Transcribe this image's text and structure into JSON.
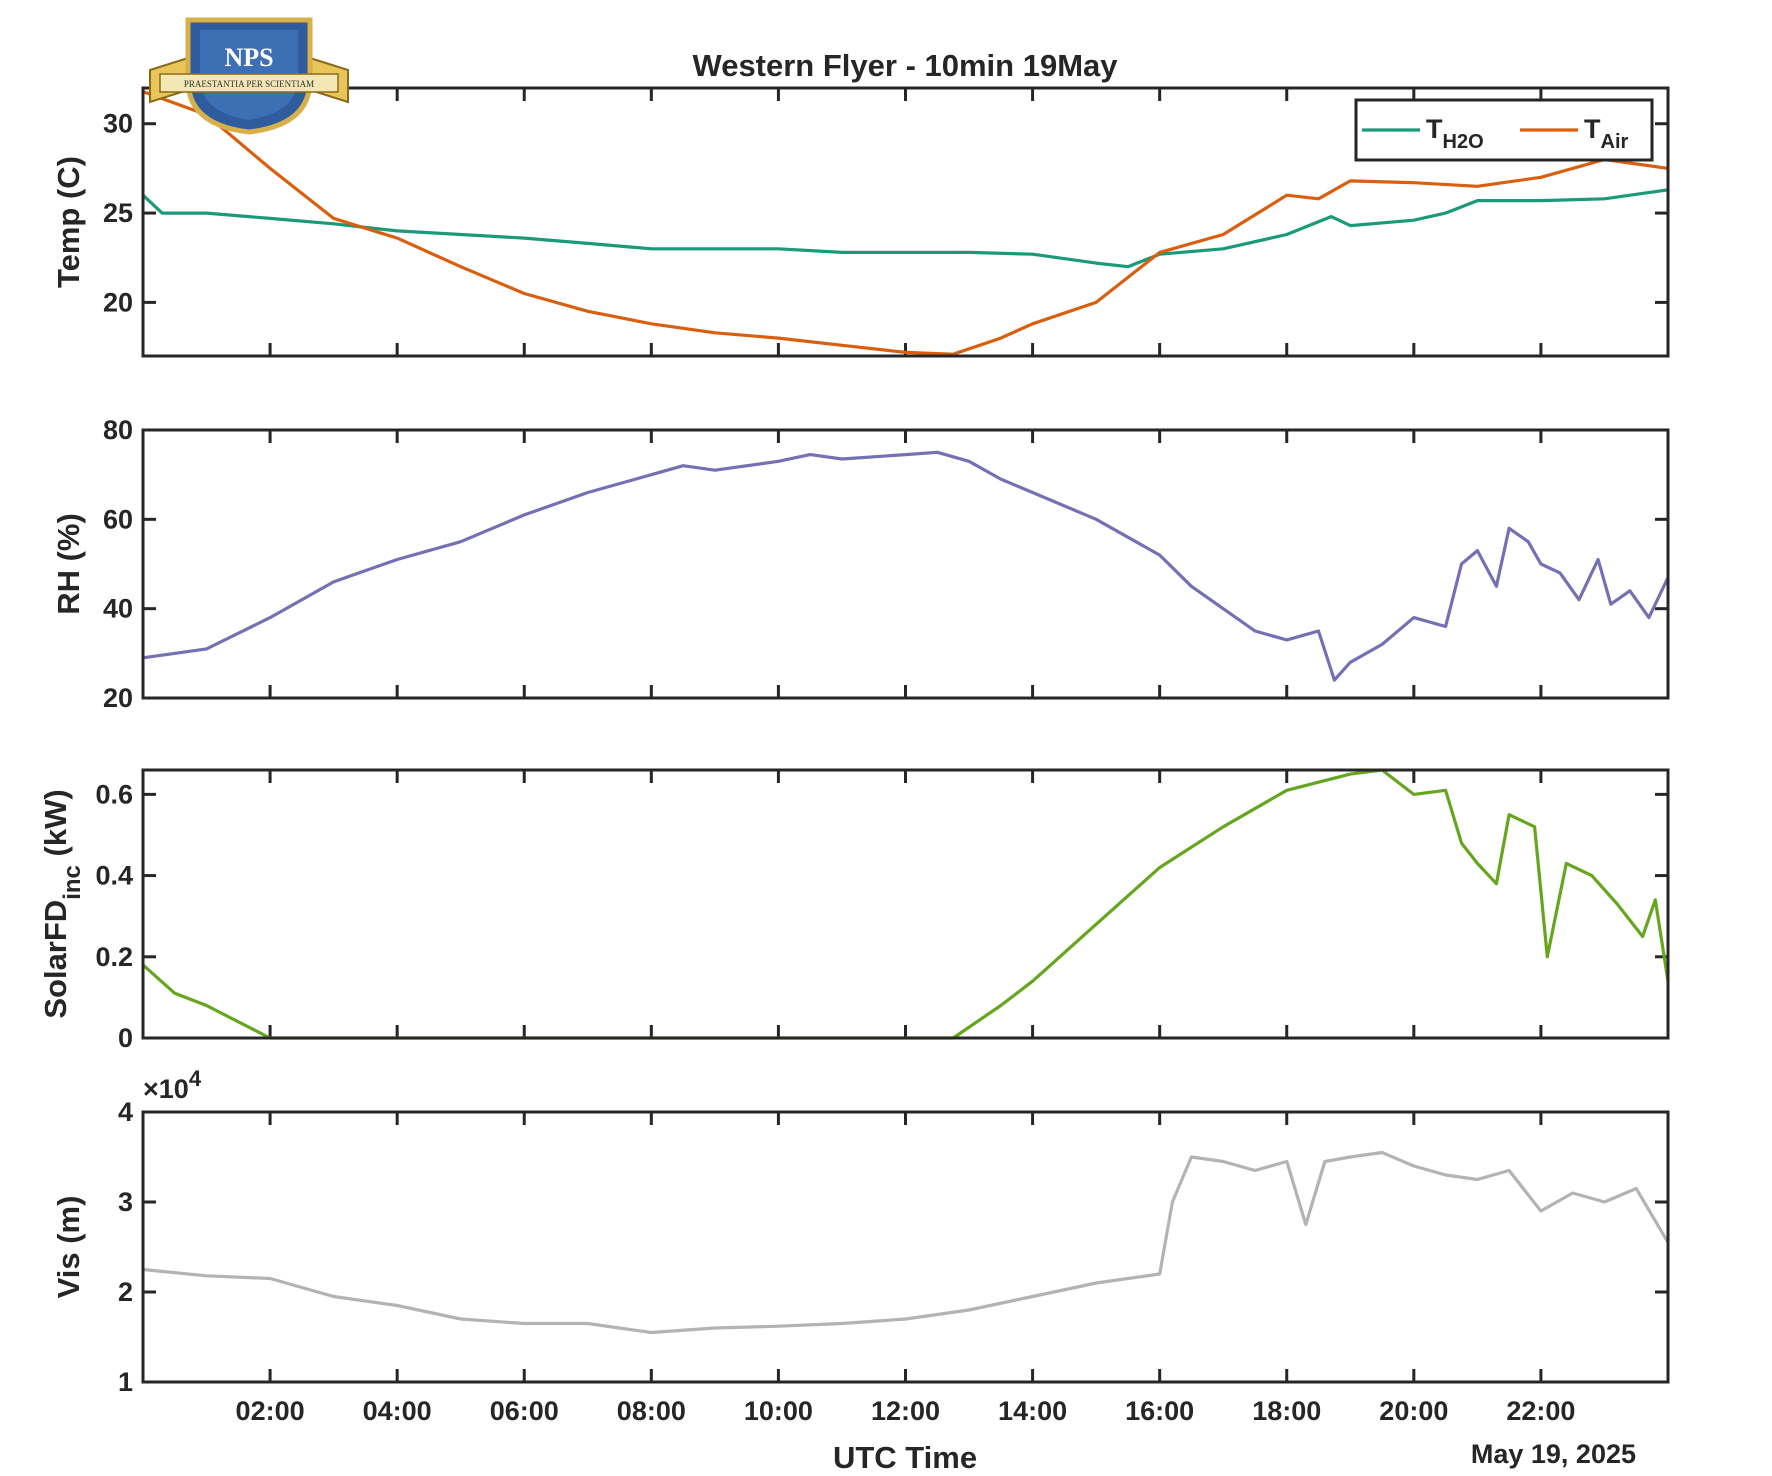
{
  "figure": {
    "title": "Western Flyer - 10min 19May",
    "xlabel": "UTC Time",
    "date_label": "May 19, 2025",
    "logo": {
      "text": "NPS",
      "motto": "PRAESTANTIA PER SCIENTIAM"
    }
  },
  "chart_data": [
    {
      "type": "line",
      "ylabel": "Temp (C)",
      "xlim": [
        "00:00",
        "24:00"
      ],
      "ylim": [
        17,
        32
      ],
      "yticks": [
        20,
        25,
        30
      ],
      "xticks": [
        "02:00",
        "04:00",
        "06:00",
        "08:00",
        "10:00",
        "12:00",
        "14:00",
        "16:00",
        "18:00",
        "20:00",
        "22:00"
      ],
      "grid": false,
      "legend": {
        "placement": "top-right",
        "entries": [
          {
            "base": "T",
            "sub": "H2O"
          },
          {
            "base": "T",
            "sub": "Air"
          }
        ]
      },
      "series": [
        {
          "name": "T_H2O",
          "color": "#1a9a7a",
          "points": [
            [
              0,
              26.0
            ],
            [
              0.3,
              25.0
            ],
            [
              1,
              25.0
            ],
            [
              2,
              24.7
            ],
            [
              3,
              24.4
            ],
            [
              4,
              24.0
            ],
            [
              5,
              23.8
            ],
            [
              6,
              23.6
            ],
            [
              7,
              23.3
            ],
            [
              8,
              23.0
            ],
            [
              9,
              23.0
            ],
            [
              10,
              23.0
            ],
            [
              11,
              22.8
            ],
            [
              12,
              22.8
            ],
            [
              13,
              22.8
            ],
            [
              14,
              22.7
            ],
            [
              15,
              22.2
            ],
            [
              15.5,
              22.0
            ],
            [
              16,
              22.7
            ],
            [
              17,
              23.0
            ],
            [
              18,
              23.8
            ],
            [
              18.7,
              24.8
            ],
            [
              19,
              24.3
            ],
            [
              20,
              24.6
            ],
            [
              20.5,
              25.0
            ],
            [
              21,
              25.7
            ],
            [
              22,
              25.7
            ],
            [
              23,
              25.8
            ],
            [
              24,
              26.3
            ]
          ]
        },
        {
          "name": "T_Air",
          "color": "#d95f0e",
          "points": [
            [
              0,
              31.8
            ],
            [
              1,
              30.5
            ],
            [
              2,
              27.5
            ],
            [
              3,
              24.7
            ],
            [
              4,
              23.6
            ],
            [
              5,
              22.0
            ],
            [
              6,
              20.5
            ],
            [
              7,
              19.5
            ],
            [
              8,
              18.8
            ],
            [
              9,
              18.3
            ],
            [
              10,
              18.0
            ],
            [
              11,
              17.6
            ],
            [
              12,
              17.2
            ],
            [
              12.75,
              17.1
            ],
            [
              13.5,
              18.0
            ],
            [
              14,
              18.8
            ],
            [
              15,
              20.0
            ],
            [
              16,
              22.8
            ],
            [
              17,
              23.8
            ],
            [
              18,
              26.0
            ],
            [
              18.5,
              25.8
            ],
            [
              19,
              26.8
            ],
            [
              20,
              26.7
            ],
            [
              21,
              26.5
            ],
            [
              22,
              27.0
            ],
            [
              23,
              28.0
            ],
            [
              24,
              27.5
            ]
          ]
        }
      ]
    },
    {
      "type": "line",
      "ylabel": "RH (%)",
      "xlim": [
        "00:00",
        "24:00"
      ],
      "ylim": [
        20,
        80
      ],
      "yticks": [
        20,
        40,
        60,
        80
      ],
      "grid": false,
      "series": [
        {
          "color": "#7570b3",
          "points": [
            [
              0,
              29
            ],
            [
              1,
              31
            ],
            [
              2,
              38
            ],
            [
              3,
              46
            ],
            [
              4,
              51
            ],
            [
              5,
              55
            ],
            [
              6,
              61
            ],
            [
              7,
              66
            ],
            [
              8,
              70
            ],
            [
              8.5,
              72
            ],
            [
              9,
              71
            ],
            [
              10,
              73
            ],
            [
              10.5,
              74.5
            ],
            [
              11,
              73.5
            ],
            [
              12,
              74.5
            ],
            [
              12.5,
              75
            ],
            [
              13,
              73
            ],
            [
              13.5,
              69
            ],
            [
              14,
              66
            ],
            [
              15,
              60
            ],
            [
              16,
              52
            ],
            [
              16.5,
              45
            ],
            [
              17,
              40
            ],
            [
              17.5,
              35
            ],
            [
              18,
              33
            ],
            [
              18.5,
              35
            ],
            [
              18.75,
              24
            ],
            [
              19,
              28
            ],
            [
              19.5,
              32
            ],
            [
              20,
              38
            ],
            [
              20.5,
              36
            ],
            [
              20.75,
              50
            ],
            [
              21,
              53
            ],
            [
              21.3,
              45
            ],
            [
              21.5,
              58
            ],
            [
              21.8,
              55
            ],
            [
              22,
              50
            ],
            [
              22.3,
              48
            ],
            [
              22.6,
              42
            ],
            [
              22.9,
              51
            ],
            [
              23.1,
              41
            ],
            [
              23.4,
              44
            ],
            [
              23.7,
              38
            ],
            [
              24,
              47
            ]
          ]
        }
      ]
    },
    {
      "type": "line",
      "ylabel": "SolarFD_inc (kW)",
      "ylabel_base": "SolarFD",
      "ylabel_sub": "inc",
      "ylabel_unit": " (kW)",
      "xlim": [
        "00:00",
        "24:00"
      ],
      "ylim": [
        0,
        0.66
      ],
      "yticks": [
        0,
        0.2,
        0.4,
        0.6
      ],
      "grid": false,
      "series": [
        {
          "color": "#66a61e",
          "points": [
            [
              0,
              0.18
            ],
            [
              0.5,
              0.11
            ],
            [
              1,
              0.08
            ],
            [
              1.5,
              0.04
            ],
            [
              2,
              0.0
            ],
            [
              12.75,
              0.0
            ],
            [
              13.5,
              0.08
            ],
            [
              14,
              0.14
            ],
            [
              15,
              0.28
            ],
            [
              16,
              0.42
            ],
            [
              17,
              0.52
            ],
            [
              18,
              0.61
            ],
            [
              19,
              0.65
            ],
            [
              19.5,
              0.66
            ],
            [
              20,
              0.6
            ],
            [
              20.5,
              0.61
            ],
            [
              20.75,
              0.48
            ],
            [
              21,
              0.43
            ],
            [
              21.3,
              0.38
            ],
            [
              21.5,
              0.55
            ],
            [
              21.9,
              0.52
            ],
            [
              22.1,
              0.2
            ],
            [
              22.4,
              0.43
            ],
            [
              22.8,
              0.4
            ],
            [
              23.2,
              0.33
            ],
            [
              23.6,
              0.25
            ],
            [
              23.8,
              0.34
            ],
            [
              24,
              0.14
            ]
          ]
        }
      ]
    },
    {
      "type": "line",
      "ylabel": "Vis (m)",
      "exponent_label": "×10",
      "exponent_power": "4",
      "xlim": [
        "00:00",
        "24:00"
      ],
      "ylim": [
        10000,
        40000
      ],
      "yticks": [
        1,
        2,
        3,
        4
      ],
      "grid": false,
      "series": [
        {
          "color": "#b3b3b3",
          "points": [
            [
              0,
              22500
            ],
            [
              1,
              21800
            ],
            [
              2,
              21500
            ],
            [
              3,
              19500
            ],
            [
              4,
              18500
            ],
            [
              5,
              17000
            ],
            [
              6,
              16500
            ],
            [
              7,
              16500
            ],
            [
              8,
              15500
            ],
            [
              9,
              16000
            ],
            [
              10,
              16200
            ],
            [
              11,
              16500
            ],
            [
              12,
              17000
            ],
            [
              13,
              18000
            ],
            [
              14,
              19500
            ],
            [
              15,
              21000
            ],
            [
              15.5,
              21500
            ],
            [
              16,
              22000
            ],
            [
              16.2,
              30000
            ],
            [
              16.5,
              35000
            ],
            [
              17,
              34500
            ],
            [
              17.5,
              33500
            ],
            [
              18,
              34500
            ],
            [
              18.3,
              27500
            ],
            [
              18.6,
              34500
            ],
            [
              19,
              35000
            ],
            [
              19.5,
              35500
            ],
            [
              20,
              34000
            ],
            [
              20.5,
              33000
            ],
            [
              21,
              32500
            ],
            [
              21.5,
              33500
            ],
            [
              22,
              29000
            ],
            [
              22.5,
              31000
            ],
            [
              23,
              30000
            ],
            [
              23.5,
              31500
            ],
            [
              24,
              25500
            ]
          ]
        }
      ]
    }
  ]
}
